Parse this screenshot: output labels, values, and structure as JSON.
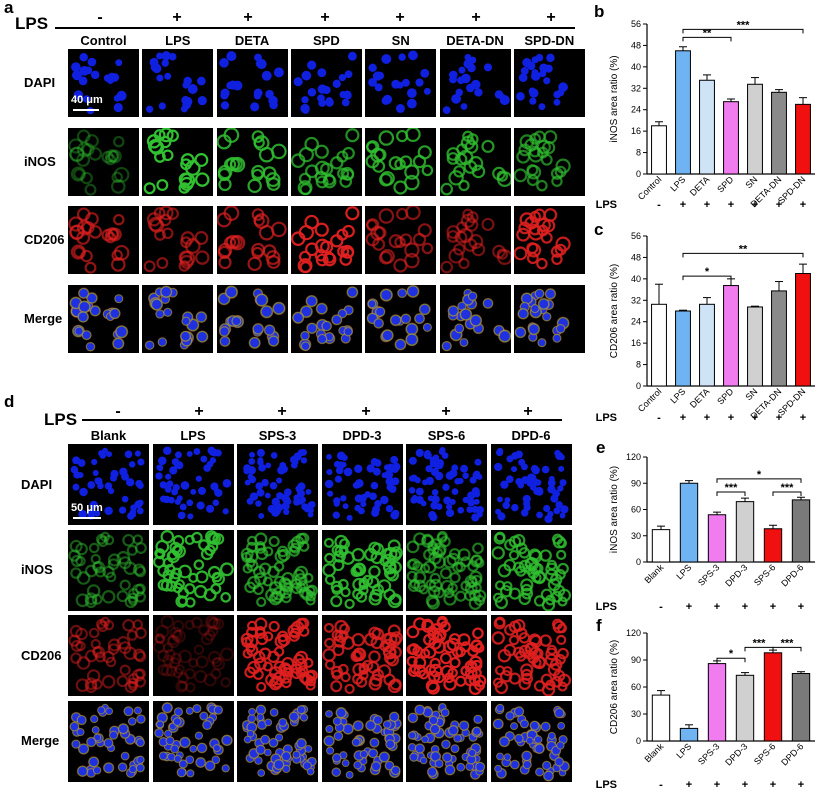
{
  "panels": {
    "a": {
      "label": "a",
      "lps_label": "LPS",
      "signs": [
        "-",
        "+",
        "+",
        "+",
        "+",
        "+",
        "+"
      ],
      "columns": [
        "Control",
        "LPS",
        "DETA",
        "SPD",
        "SN",
        "DETA-DN",
        "SPD-DN"
      ],
      "rows": [
        "DAPI",
        "iNOS",
        "CD206",
        "Merge"
      ],
      "scale_bar": "40 μm"
    },
    "d": {
      "label": "d",
      "lps_label": "LPS",
      "signs": [
        "-",
        "+",
        "+",
        "+",
        "+",
        "+"
      ],
      "columns": [
        "Blank",
        "LPS",
        "SPS-3",
        "DPD-3",
        "SPS-6",
        "DPD-6"
      ],
      "rows": [
        "DAPI",
        "iNOS",
        "CD206",
        "Merge"
      ],
      "scale_bar": "50 μm"
    }
  },
  "colors": {
    "white": "#ffffff",
    "light_blue": "#6fb3f2",
    "pale_blue": "#cfe3f7",
    "pink": "#f07cf0",
    "light_gray": "#d0d0d0",
    "gray": "#8a8a8a",
    "red": "#f01010",
    "dark_gray": "#7a7a7a"
  },
  "chart_data": [
    {
      "panel": "b",
      "type": "bar",
      "ylabel": "iNOS area ratio (%)",
      "ylim": [
        0,
        56
      ],
      "yticks": [
        0,
        8,
        16,
        24,
        32,
        40,
        48,
        56
      ],
      "categories": [
        "Control",
        "LPS",
        "DETA",
        "SPD",
        "SN",
        "DETA-DN",
        "SPD-DN"
      ],
      "values": [
        18,
        46,
        35,
        27,
        33.5,
        30.5,
        26
      ],
      "errors": [
        1.5,
        1.5,
        2,
        1,
        2.5,
        1,
        2.5
      ],
      "colors": [
        "#ffffff",
        "#6fb3f2",
        "#cfe3f7",
        "#f07cf0",
        "#d0d0d0",
        "#8a8a8a",
        "#f01010"
      ],
      "lps_label": "LPS",
      "lps_signs": [
        "-",
        "+",
        "+",
        "+",
        "+",
        "+",
        "+"
      ],
      "significance": [
        {
          "from": 1,
          "to": 3,
          "label": "**",
          "y": 51
        },
        {
          "from": 1,
          "to": 6,
          "label": "***",
          "y": 54
        }
      ]
    },
    {
      "panel": "c",
      "type": "bar",
      "ylabel": "CD206 area ratio (%)",
      "ylim": [
        0,
        56
      ],
      "yticks": [
        0,
        8,
        16,
        24,
        32,
        40,
        48,
        56
      ],
      "categories": [
        "Control",
        "LPS",
        "DETA",
        "SPD",
        "SN",
        "DETA-DN",
        "SPD-DN"
      ],
      "values": [
        30.5,
        28,
        30.5,
        37.5,
        29.5,
        35.5,
        42
      ],
      "errors": [
        7.5,
        0.3,
        2.5,
        2.5,
        0.3,
        3.5,
        3.5
      ],
      "colors": [
        "#ffffff",
        "#6fb3f2",
        "#cfe3f7",
        "#f07cf0",
        "#d0d0d0",
        "#8a8a8a",
        "#f01010"
      ],
      "lps_label": "LPS",
      "lps_signs": [
        "-",
        "+",
        "+",
        "+",
        "+",
        "+",
        "+"
      ],
      "significance": [
        {
          "from": 1,
          "to": 3,
          "label": "*",
          "y": 41
        },
        {
          "from": 1,
          "to": 6,
          "label": "**",
          "y": 49.5
        }
      ]
    },
    {
      "panel": "e",
      "type": "bar",
      "ylabel": "iNOS area ratio (%)",
      "ylim": [
        0,
        120
      ],
      "yticks": [
        0,
        30,
        60,
        90,
        120
      ],
      "categories": [
        "Blank",
        "LPS",
        "SPS-3",
        "DPD-3",
        "SPS-6",
        "DPD-6"
      ],
      "values": [
        37,
        90,
        54,
        69,
        38,
        71
      ],
      "errors": [
        4,
        3,
        3,
        4,
        4,
        3
      ],
      "colors": [
        "#ffffff",
        "#6fb3f2",
        "#f07cf0",
        "#d0d0d0",
        "#f01010",
        "#7a7a7a"
      ],
      "lps_label": "LPS",
      "lps_signs": [
        "-",
        "+",
        "+",
        "+",
        "+",
        "+"
      ],
      "significance": [
        {
          "from": 2,
          "to": 5,
          "label": "*",
          "y": 95
        },
        {
          "from": 2,
          "to": 3,
          "label": "***",
          "y": 80
        },
        {
          "from": 4,
          "to": 5,
          "label": "***",
          "y": 80
        }
      ]
    },
    {
      "panel": "f",
      "type": "bar",
      "ylabel": "CD206 area ratio (%)",
      "ylim": [
        0,
        120
      ],
      "yticks": [
        0,
        30,
        60,
        90,
        120
      ],
      "categories": [
        "Blank",
        "LPS",
        "SPS-3",
        "DPD-3",
        "SPS-6",
        "DPD-6"
      ],
      "values": [
        51,
        14,
        86,
        73,
        98,
        75
      ],
      "errors": [
        5,
        4,
        3,
        3,
        3,
        2
      ],
      "colors": [
        "#ffffff",
        "#6fb3f2",
        "#f07cf0",
        "#d0d0d0",
        "#f01010",
        "#7a7a7a"
      ],
      "lps_label": "LPS",
      "lps_signs": [
        "-",
        "+",
        "+",
        "+",
        "+",
        "+"
      ],
      "significance": [
        {
          "from": 2,
          "to": 3,
          "label": "*",
          "y": 92
        },
        {
          "from": 3,
          "to": 4,
          "label": "***",
          "y": 104
        },
        {
          "from": 4,
          "to": 5,
          "label": "***",
          "y": 104
        }
      ]
    }
  ]
}
